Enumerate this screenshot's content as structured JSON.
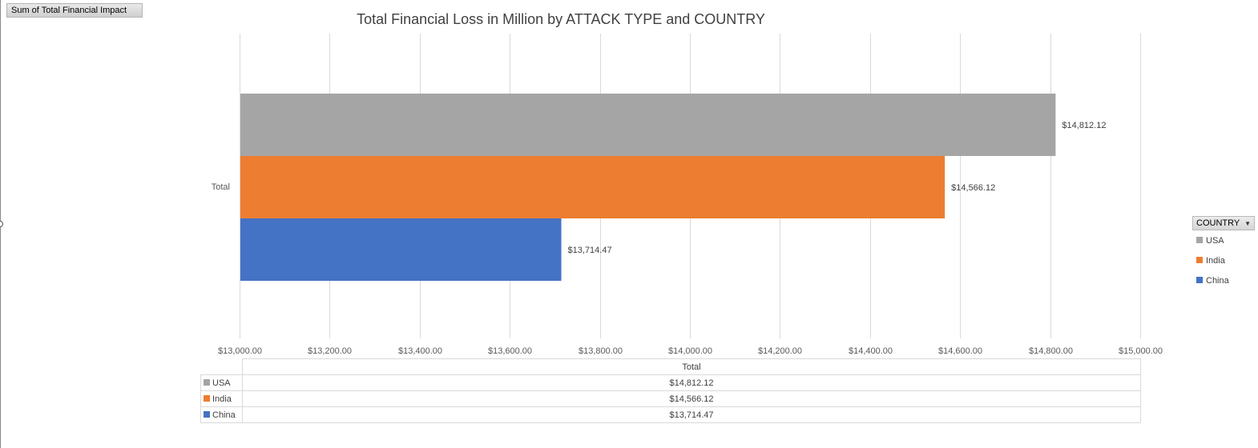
{
  "pivot": {
    "value_field_label": "Sum of Total Financial Impact",
    "legend_field_label": "COUNTRY"
  },
  "chart_data": {
    "type": "bar",
    "orientation": "horizontal",
    "title": "Total Financial Loss in Million by ATTACK TYPE and COUNTRY",
    "categories": [
      "Total"
    ],
    "series": [
      {
        "name": "USA",
        "values": [
          14812.12
        ],
        "label": "$14,812.12",
        "color": "#a5a5a5"
      },
      {
        "name": "India",
        "values": [
          14566.12
        ],
        "label": "$14,566.12",
        "color": "#ed7d31"
      },
      {
        "name": "China",
        "values": [
          13714.47
        ],
        "label": "$13,714.47",
        "color": "#4472c4"
      }
    ],
    "xlim": [
      13000,
      15000
    ],
    "xticks": [
      13000,
      13200,
      13400,
      13600,
      13800,
      14000,
      14200,
      14400,
      14600,
      14800,
      15000
    ],
    "xtick_labels": [
      "$13,000.00",
      "$13,200.00",
      "$13,400.00",
      "$13,600.00",
      "$13,800.00",
      "$14,000.00",
      "$14,200.00",
      "$14,400.00",
      "$14,600.00",
      "$14,800.00",
      "$15,000.00"
    ],
    "grid": true,
    "legend_position": "right",
    "data_table": {
      "header": "Total",
      "rows": [
        {
          "name": "USA",
          "value": "$14,812.12",
          "color": "#a5a5a5"
        },
        {
          "name": "India",
          "value": "$14,566.12",
          "color": "#ed7d31"
        },
        {
          "name": "China",
          "value": "$13,714.47",
          "color": "#4472c4"
        }
      ]
    }
  }
}
